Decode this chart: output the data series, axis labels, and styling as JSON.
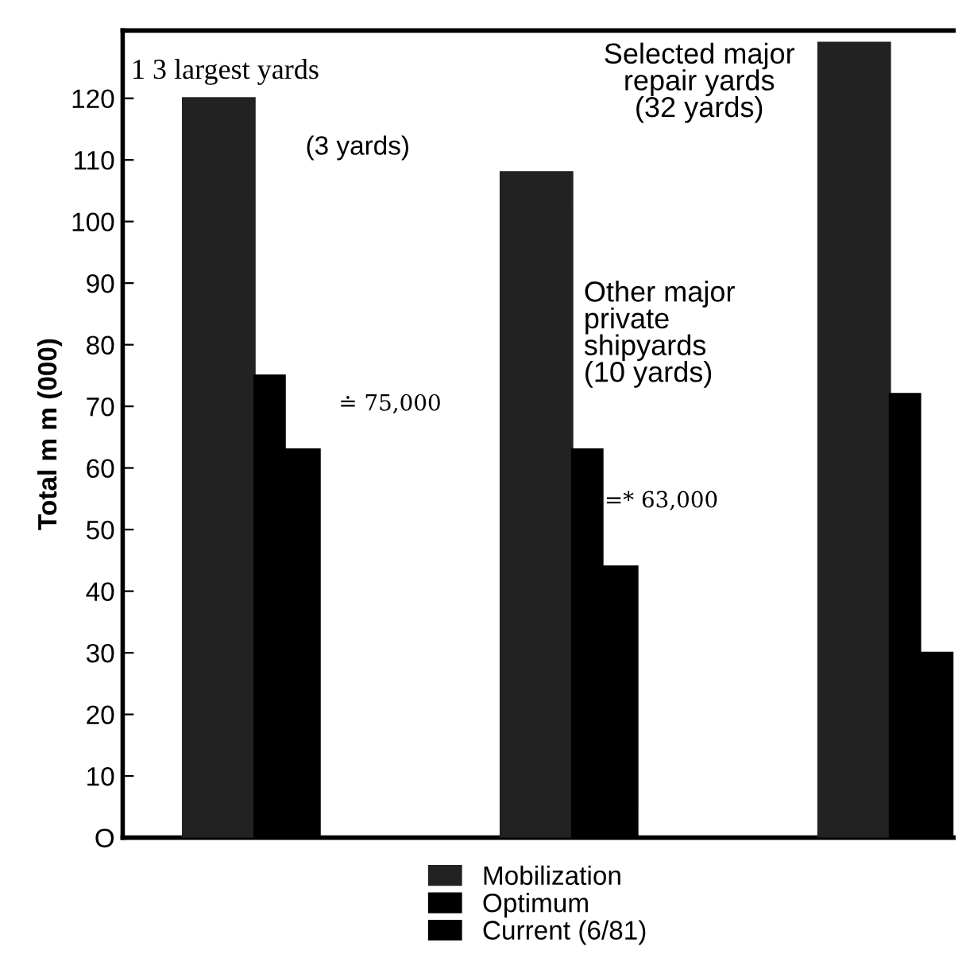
{
  "chart_data": {
    "type": "bar",
    "categories": [
      null,
      null,
      null
    ],
    "ylabel": "Total m m (000)",
    "series": [
      {
        "name": "Mobilization",
        "color": "#222222",
        "values": [
          120,
          108,
          129
        ]
      },
      {
        "name": "Optimum",
        "color": "#000000",
        "values": [
          75,
          63,
          72
        ]
      },
      {
        "name": "Current (6/81)",
        "color": "#000000",
        "values": [
          63,
          44,
          30
        ]
      }
    ],
    "ylim": [
      0,
      131
    ],
    "yticks": [
      {
        "value": 0,
        "label": "O"
      },
      10,
      20,
      30,
      40,
      50,
      60,
      70,
      80,
      90,
      100,
      110,
      120
    ],
    "annotations": [
      "1 3 largest yards",
      "(3 yards)",
      "Other major private shipyards (10 yards)",
      "Selected major repair yards (32 yards)",
      "≐ 75,000",
      "=* 63,000"
    ],
    "legend": "bottom",
    "grid": false
  }
}
